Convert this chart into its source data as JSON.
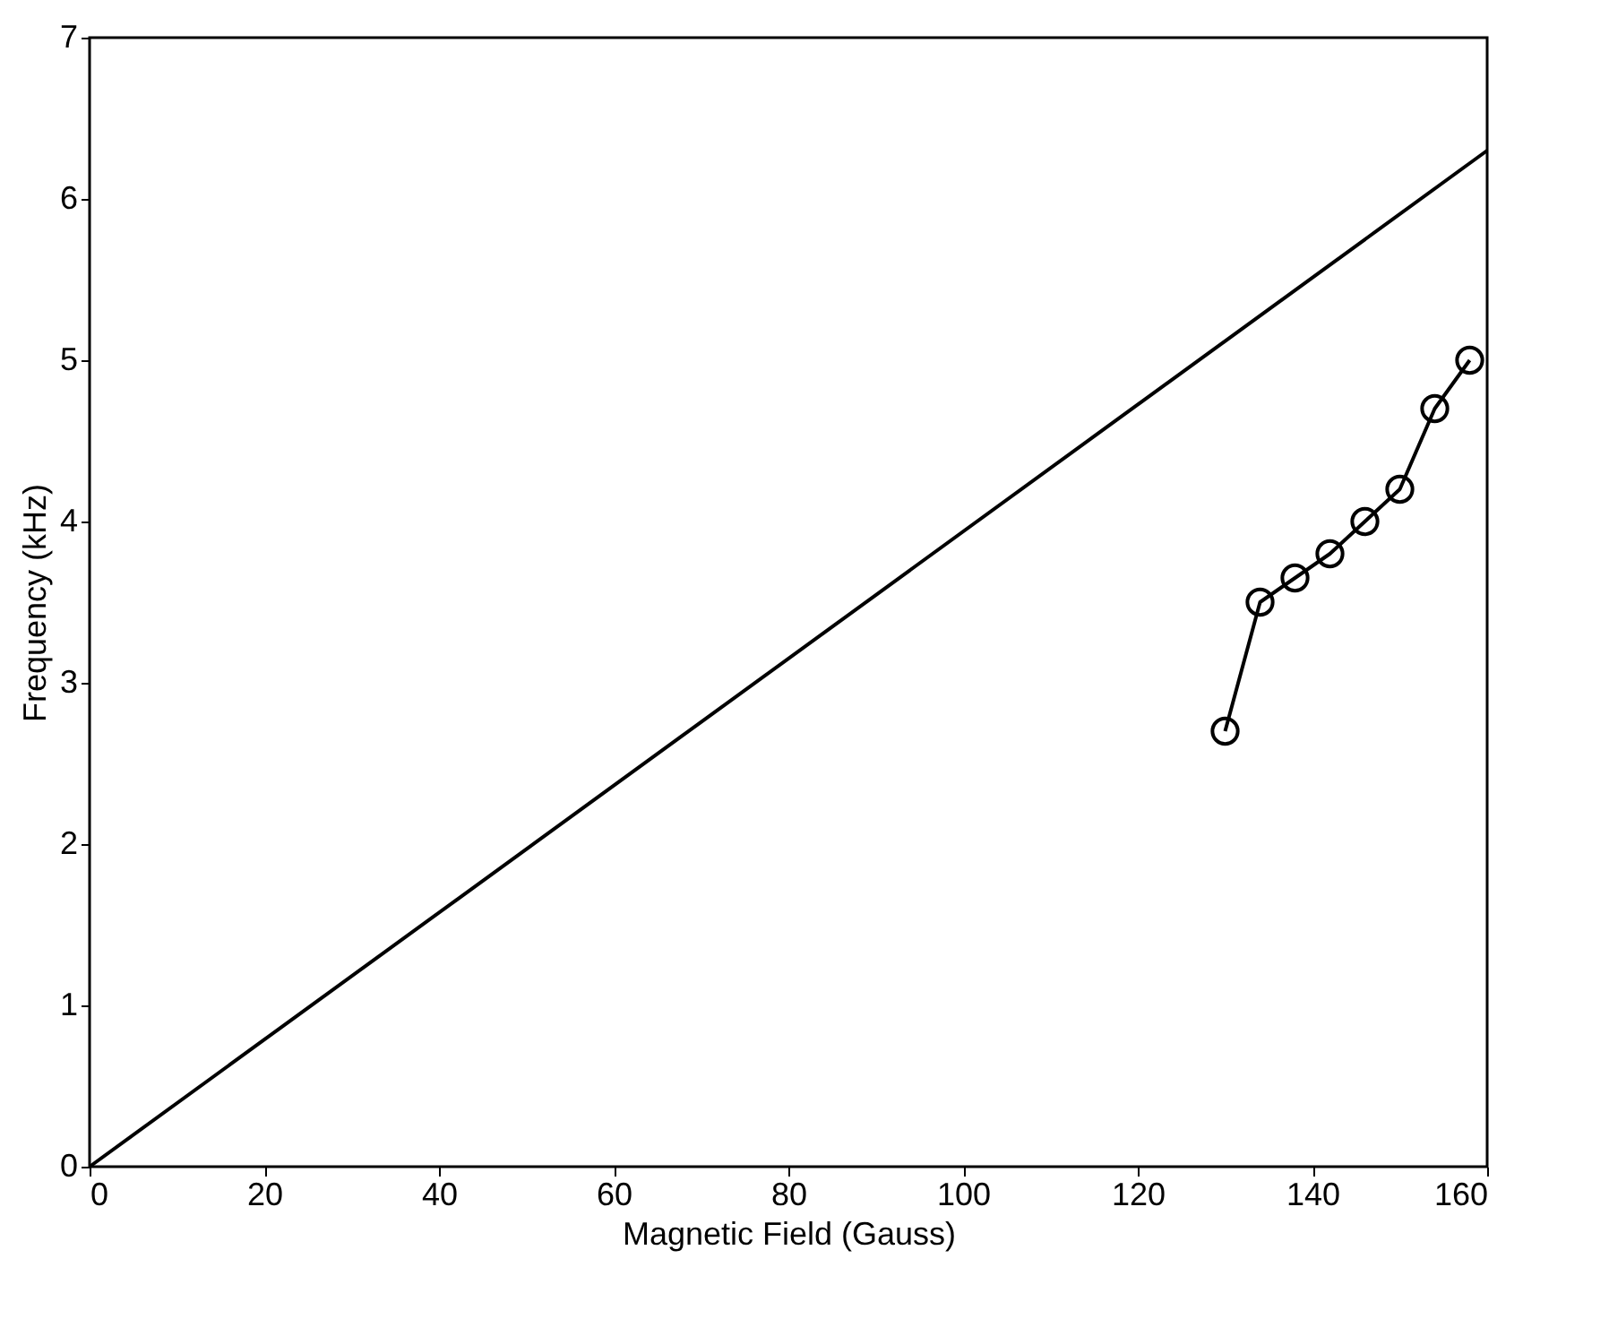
{
  "chart_data": {
    "type": "line",
    "xlabel": "Magnetic Field (Gauss)",
    "ylabel": "Frequency (kHz)",
    "xlim": [
      0,
      160
    ],
    "ylim": [
      0,
      7
    ],
    "xticks": [
      0,
      20,
      40,
      60,
      80,
      100,
      120,
      140,
      160
    ],
    "yticks": [
      0,
      1,
      2,
      3,
      4,
      5,
      6,
      7
    ],
    "grid": false,
    "series": [
      {
        "color": "#000000",
        "marker": "none",
        "x": [
          0,
          160
        ],
        "values": [
          0,
          6.3
        ]
      },
      {
        "color": "#000000",
        "marker": "circle",
        "x": [
          130,
          134,
          138,
          142,
          146,
          150,
          154,
          158
        ],
        "values": [
          2.7,
          3.5,
          3.65,
          3.8,
          4.0,
          4.2,
          4.7,
          5.0
        ]
      }
    ]
  }
}
